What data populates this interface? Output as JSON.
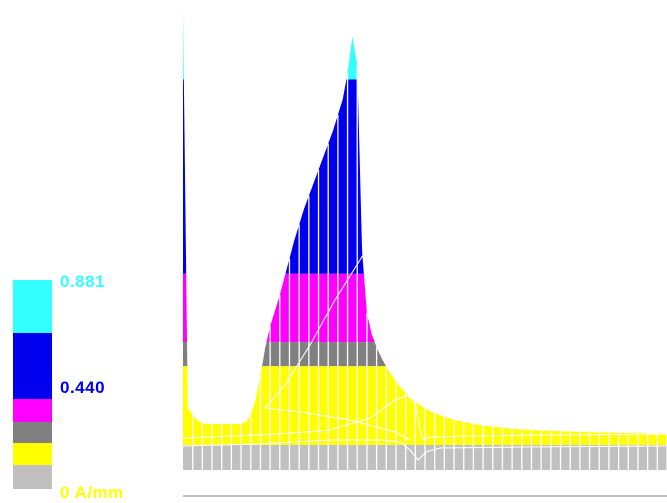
{
  "legend": {
    "max_label": "0.881",
    "mid_label": "0.440",
    "min_label": "0 A/mm",
    "colors": {
      "cyan": "#33ffff",
      "blue": "#0000ee",
      "magenta": "#ff00ff",
      "dark_gray": "#808080",
      "yellow": "#ffff00",
      "light_gray": "#c0c0c0"
    },
    "label_colors": {
      "max": "#33ffff",
      "mid": "#0000ee",
      "min": "#ffff00"
    }
  },
  "chart_data": {
    "type": "area",
    "title": "",
    "xlabel": "",
    "ylabel": "",
    "unit": "A/mm",
    "ylim": [
      0,
      0.881
    ],
    "x": [
      0,
      1,
      2,
      3,
      4,
      5,
      6,
      7,
      8,
      9,
      10,
      11,
      12,
      13,
      14,
      15,
      16,
      17,
      18,
      19,
      20,
      21,
      22,
      23,
      24,
      25,
      26,
      27,
      28,
      29,
      30,
      31,
      32,
      33,
      34,
      35,
      36,
      37,
      38,
      39,
      40,
      41,
      42,
      43,
      44,
      45,
      46,
      47,
      48,
      49,
      50,
      51,
      52,
      53,
      54,
      55,
      56,
      57,
      58,
      59,
      60,
      61,
      62,
      63,
      64,
      65,
      66,
      67,
      68,
      69,
      70,
      71,
      72,
      73,
      74,
      75,
      76,
      77,
      78,
      79,
      80,
      81,
      82,
      83,
      84,
      85,
      86,
      87,
      88,
      89,
      90,
      91,
      92,
      93,
      94,
      95,
      96,
      97,
      98,
      99,
      100
    ],
    "series": [
      {
        "values": [
          0.881,
          0.119,
          0.106,
          0.095,
          0.09,
          0.088,
          0.088,
          0.088,
          0.088,
          0.088,
          0.088,
          0.088,
          0.088,
          0.092,
          0.105,
          0.135,
          0.18,
          0.235,
          0.275,
          0.305,
          0.335,
          0.37,
          0.405,
          0.44,
          0.47,
          0.5,
          0.525,
          0.55,
          0.575,
          0.6,
          0.625,
          0.65,
          0.68,
          0.71,
          0.76,
          0.83,
          0.775,
          0.42,
          0.3,
          0.26,
          0.235,
          0.215,
          0.198,
          0.183,
          0.17,
          0.158,
          0.148,
          0.139,
          0.131,
          0.124,
          0.118,
          0.113,
          0.109,
          0.105,
          0.102,
          0.099,
          0.096,
          0.094,
          0.092,
          0.09,
          0.088,
          0.087,
          0.085,
          0.084,
          0.083,
          0.082,
          0.081,
          0.08,
          0.079,
          0.078,
          0.078,
          0.077,
          0.077,
          0.076,
          0.076,
          0.075,
          0.075,
          0.075,
          0.074,
          0.074,
          0.074,
          0.073,
          0.073,
          0.073,
          0.073,
          0.072,
          0.072,
          0.072,
          0.072,
          0.072,
          0.071,
          0.071,
          0.071,
          0.071,
          0.071,
          0.071,
          0.07,
          0.07,
          0.07,
          0.07,
          0.07
        ]
      }
    ],
    "grid": false,
    "legend_position": "left"
  }
}
